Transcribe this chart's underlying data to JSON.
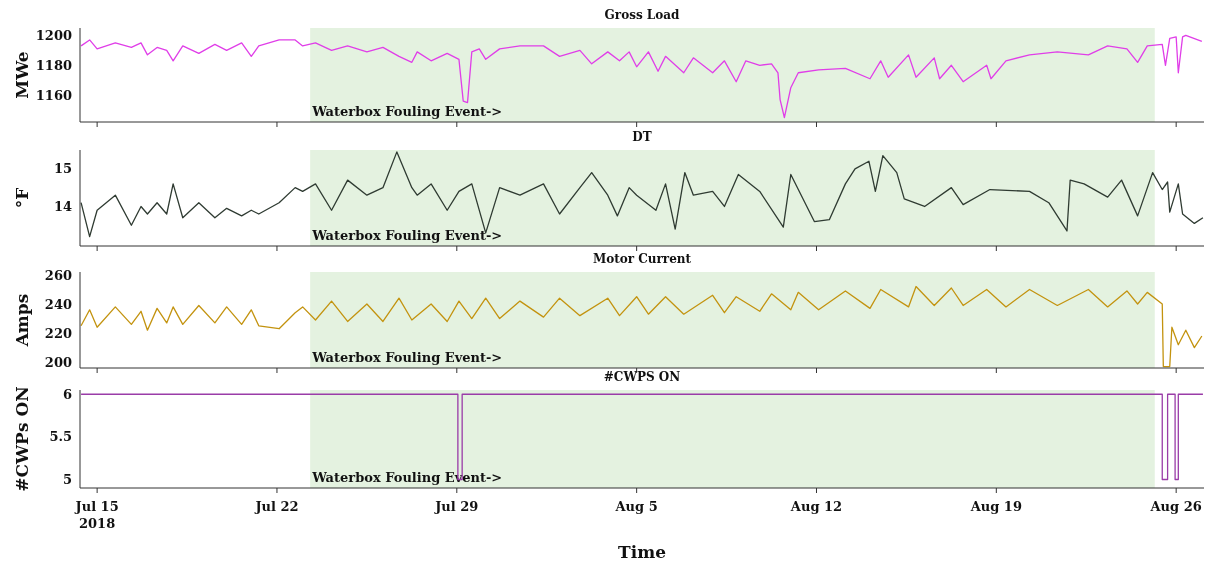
{
  "chart_data": [
    {
      "type": "line",
      "title": "Gross Load",
      "ylabel": "MWe",
      "tick_labels": "y",
      "xlim": [
        "2018-07-14T08:00",
        "2018-08-27T02:00"
      ],
      "xticks": [
        {
          "value": "2018-07-15",
          "label": null
        },
        {
          "value": "2018-07-22",
          "label": null
        },
        {
          "value": "2018-07-29",
          "label": null
        },
        {
          "value": "2018-08-05",
          "label": null
        },
        {
          "value": "2018-08-12",
          "label": null
        },
        {
          "value": "2018-08-19",
          "label": null
        },
        {
          "value": "2018-08-26",
          "label": null
        }
      ],
      "ylim": [
        1142,
        1205
      ],
      "yticks": [
        1160,
        1180,
        1200
      ],
      "bands": [
        {
          "axis": "x",
          "from": "2018-07-23T07:00",
          "to": "2018-08-25T04:00",
          "label": "Waterbox Fouling Event->",
          "color": "#e4f2e0"
        }
      ],
      "x": [
        "2018-07-14T09:00",
        "2018-07-14T17:00",
        "2018-07-15T00:00",
        "2018-07-15T17:00",
        "2018-07-16T08:00",
        "2018-07-16T17:00",
        "2018-07-16T23:00",
        "2018-07-17T08:00",
        "2018-07-17T17:00",
        "2018-07-17T23:00",
        "2018-07-18T08:00",
        "2018-07-18T23:00",
        "2018-07-19T14:00",
        "2018-07-20T01:00",
        "2018-07-20T15:00",
        "2018-07-21T00:00",
        "2018-07-21T07:00",
        "2018-07-22T02:00",
        "2018-07-22T17:00",
        "2018-07-23T00:00",
        "2018-07-23T12:00",
        "2018-07-24T03:00",
        "2018-07-24T18:00",
        "2018-07-25T12:00",
        "2018-07-26T03:00",
        "2018-07-26T18:00",
        "2018-07-27T06:00",
        "2018-07-27T11:00",
        "2018-07-28T00:00",
        "2018-07-28T15:00",
        "2018-07-29T02:00",
        "2018-07-29T06:00",
        "2018-07-29T10:00",
        "2018-07-29T14:00",
        "2018-07-29T21:00",
        "2018-07-30T03:00",
        "2018-07-30T16:00",
        "2018-07-31T11:00",
        "2018-08-01T09:00",
        "2018-08-02T00:00",
        "2018-08-02T19:00",
        "2018-08-03T06:00",
        "2018-08-03T21:00",
        "2018-08-04T08:00",
        "2018-08-04T17:00",
        "2018-08-05T00:00",
        "2018-08-05T11:00",
        "2018-08-05T20:00",
        "2018-08-06T03:00",
        "2018-08-06T20:00",
        "2018-08-07T05:00",
        "2018-08-07T23:00",
        "2018-08-08T10:00",
        "2018-08-08T21:00",
        "2018-08-09T06:00",
        "2018-08-09T19:00",
        "2018-08-10T06:00",
        "2018-08-10T12:00",
        "2018-08-10T14:00",
        "2018-08-10T18:00",
        "2018-08-11T00:00",
        "2018-08-11T07:00",
        "2018-08-12T02:00",
        "2018-08-13T03:00",
        "2018-08-14T02:00",
        "2018-08-14T12:00",
        "2018-08-14T19:00",
        "2018-08-15T14:00",
        "2018-08-15T21:00",
        "2018-08-16T14:00",
        "2018-08-16T19:00",
        "2018-08-17T06:00",
        "2018-08-17T17:00",
        "2018-08-18T15:00",
        "2018-08-18T19:00",
        "2018-08-19T09:00",
        "2018-08-20T07:00",
        "2018-08-21T09:00",
        "2018-08-22T14:00",
        "2018-08-23T08:00",
        "2018-08-24T02:00",
        "2018-08-24T12:00",
        "2018-08-24T21:00",
        "2018-08-25T11:00",
        "2018-08-25T14:00",
        "2018-08-25T18:00",
        "2018-08-26T00:00",
        "2018-08-26T02:00",
        "2018-08-26T06:00",
        "2018-08-26T09:00",
        "2018-08-27T00:00"
      ],
      "series": [
        {
          "color": "#e03ee8",
          "values": [
            1193,
            1197,
            1191,
            1195,
            1192,
            1195,
            1187,
            1192,
            1190,
            1183,
            1193,
            1188,
            1194,
            1190,
            1195,
            1186,
            1193,
            1197,
            1197,
            1193,
            1195,
            1190,
            1193,
            1189,
            1192,
            1186,
            1182,
            1189,
            1183,
            1188,
            1184,
            1156,
            1155,
            1189,
            1191,
            1184,
            1191,
            1193,
            1193,
            1186,
            1190,
            1181,
            1189,
            1183,
            1189,
            1179,
            1189,
            1176,
            1186,
            1175,
            1185,
            1175,
            1183,
            1169,
            1183,
            1180,
            1181,
            1175,
            1157,
            1145,
            1165,
            1175,
            1177,
            1178,
            1171,
            1183,
            1172,
            1187,
            1172,
            1185,
            1171,
            1180,
            1169,
            1180,
            1171,
            1183,
            1187,
            1189,
            1187,
            1193,
            1191,
            1182,
            1193,
            1194,
            1180,
            1198,
            1199,
            1175,
            1199,
            1200,
            1196
          ]
        }
      ]
    },
    {
      "type": "line",
      "title": "DT",
      "ylabel": "°F",
      "tick_labels": "y",
      "xlim": [
        "2018-07-14T08:00",
        "2018-08-27T02:00"
      ],
      "xticks": [
        {
          "value": "2018-07-15",
          "label": null
        },
        {
          "value": "2018-07-22",
          "label": null
        },
        {
          "value": "2018-07-29",
          "label": null
        },
        {
          "value": "2018-08-05",
          "label": null
        },
        {
          "value": "2018-08-12",
          "label": null
        },
        {
          "value": "2018-08-19",
          "label": null
        },
        {
          "value": "2018-08-26",
          "label": null
        }
      ],
      "ylim": [
        12.95,
        15.5
      ],
      "yticks": [
        14,
        15
      ],
      "bands": [
        {
          "axis": "x",
          "from": "2018-07-23T07:00",
          "to": "2018-08-25T04:00",
          "label": "Waterbox Fouling Event->",
          "color": "#e4f2e0"
        }
      ],
      "x": [
        "2018-07-14T09:00",
        "2018-07-14T17:00",
        "2018-07-15T00:00",
        "2018-07-15T17:00",
        "2018-07-16T08:00",
        "2018-07-16T17:00",
        "2018-07-16T23:00",
        "2018-07-17T08:00",
        "2018-07-17T17:00",
        "2018-07-17T23:00",
        "2018-07-18T08:00",
        "2018-07-18T23:00",
        "2018-07-19T14:00",
        "2018-07-20T01:00",
        "2018-07-20T15:00",
        "2018-07-21T00:00",
        "2018-07-21T07:00",
        "2018-07-22T02:00",
        "2018-07-22T17:00",
        "2018-07-23T00:00",
        "2018-07-23T12:00",
        "2018-07-24T03:00",
        "2018-07-24T18:00",
        "2018-07-25T12:00",
        "2018-07-26T03:00",
        "2018-07-26T16:00",
        "2018-07-27T06:00",
        "2018-07-27T11:00",
        "2018-07-28T00:00",
        "2018-07-28T15:00",
        "2018-07-29T02:00",
        "2018-07-29T14:00",
        "2018-07-30T03:00",
        "2018-07-30T16:00",
        "2018-07-31T11:00",
        "2018-08-01T09:00",
        "2018-08-02T00:00",
        "2018-08-02T19:00",
        "2018-08-03T06:00",
        "2018-08-03T21:00",
        "2018-08-04T06:00",
        "2018-08-04T17:00",
        "2018-08-05T00:00",
        "2018-08-05T18:00",
        "2018-08-06T03:00",
        "2018-08-06T12:00",
        "2018-08-06T21:00",
        "2018-08-07T05:00",
        "2018-08-07T23:00",
        "2018-08-08T10:00",
        "2018-08-08T23:00",
        "2018-08-09T19:00",
        "2018-08-10T17:00",
        "2018-08-11T00:00",
        "2018-08-11T22:00",
        "2018-08-12T12:00",
        "2018-08-13T03:00",
        "2018-08-13T12:00",
        "2018-08-14T01:00",
        "2018-08-14T07:00",
        "2018-08-14T14:00",
        "2018-08-15T03:00",
        "2018-08-15T10:00",
        "2018-08-16T05:00",
        "2018-08-17T06:00",
        "2018-08-17T17:00",
        "2018-08-18T18:00",
        "2018-08-20T07:00",
        "2018-08-21T01:00",
        "2018-08-21T18:00",
        "2018-08-21T21:00",
        "2018-08-22T10:00",
        "2018-08-23T08:00",
        "2018-08-23T21:00",
        "2018-08-24T12:00",
        "2018-08-25T02:00",
        "2018-08-25T11:00",
        "2018-08-25T16:00",
        "2018-08-25T18:00",
        "2018-08-26T02:00",
        "2018-08-26T06:00",
        "2018-08-26T17:00",
        "2018-08-27T01:00"
      ],
      "series": [
        {
          "color": "#2f3b32",
          "values": [
            14.1,
            13.2,
            13.9,
            14.3,
            13.5,
            14.0,
            13.8,
            14.1,
            13.8,
            14.6,
            13.7,
            14.1,
            13.7,
            13.95,
            13.75,
            13.9,
            13.8,
            14.1,
            14.5,
            14.4,
            14.6,
            13.9,
            14.7,
            14.3,
            14.5,
            15.45,
            14.5,
            14.3,
            14.6,
            13.9,
            14.4,
            14.6,
            13.3,
            14.5,
            14.3,
            14.6,
            13.8,
            14.5,
            14.9,
            14.3,
            13.75,
            14.5,
            14.3,
            13.9,
            14.6,
            13.4,
            14.9,
            14.3,
            14.4,
            14.0,
            14.85,
            14.4,
            13.45,
            14.85,
            13.6,
            13.65,
            14.6,
            15.0,
            15.2,
            14.4,
            15.35,
            14.9,
            14.2,
            14.0,
            14.5,
            14.05,
            14.45,
            14.4,
            14.1,
            13.35,
            14.7,
            14.6,
            14.25,
            14.7,
            13.75,
            14.9,
            14.45,
            14.65,
            13.85,
            14.6,
            13.8,
            13.55,
            13.7
          ]
        }
      ]
    },
    {
      "type": "line",
      "title": "Motor Current",
      "ylabel": "Amps",
      "tick_labels": "y",
      "xlim": [
        "2018-07-14T08:00",
        "2018-08-27T02:00"
      ],
      "xticks": [
        {
          "value": "2018-07-15",
          "label": null
        },
        {
          "value": "2018-07-22",
          "label": null
        },
        {
          "value": "2018-07-29",
          "label": null
        },
        {
          "value": "2018-08-05",
          "label": null
        },
        {
          "value": "2018-08-12",
          "label": null
        },
        {
          "value": "2018-08-19",
          "label": null
        },
        {
          "value": "2018-08-26",
          "label": null
        }
      ],
      "ylim": [
        196,
        262
      ],
      "yticks": [
        200,
        220,
        240,
        260
      ],
      "bands": [
        {
          "axis": "x",
          "from": "2018-07-23T07:00",
          "to": "2018-08-25T04:00",
          "label": "Waterbox Fouling Event->",
          "color": "#e4f2e0"
        }
      ],
      "x": [
        "2018-07-14T09:00",
        "2018-07-14T17:00",
        "2018-07-15T00:00",
        "2018-07-15T17:00",
        "2018-07-16T08:00",
        "2018-07-16T17:00",
        "2018-07-16T23:00",
        "2018-07-17T08:00",
        "2018-07-17T17:00",
        "2018-07-17T23:00",
        "2018-07-18T08:00",
        "2018-07-18T23:00",
        "2018-07-19T14:00",
        "2018-07-20T01:00",
        "2018-07-20T15:00",
        "2018-07-21T00:00",
        "2018-07-21T07:00",
        "2018-07-22T02:00",
        "2018-07-22T17:00",
        "2018-07-23T00:00",
        "2018-07-23T12:00",
        "2018-07-24T03:00",
        "2018-07-24T18:00",
        "2018-07-25T12:00",
        "2018-07-26T03:00",
        "2018-07-26T18:00",
        "2018-07-27T06:00",
        "2018-07-28T00:00",
        "2018-07-28T15:00",
        "2018-07-29T02:00",
        "2018-07-29T14:00",
        "2018-07-30T03:00",
        "2018-07-30T16:00",
        "2018-07-31T11:00",
        "2018-08-01T09:00",
        "2018-08-02T00:00",
        "2018-08-02T19:00",
        "2018-08-03T21:00",
        "2018-08-04T08:00",
        "2018-08-05T00:00",
        "2018-08-05T11:00",
        "2018-08-06T03:00",
        "2018-08-06T20:00",
        "2018-08-07T23:00",
        "2018-08-08T10:00",
        "2018-08-08T21:00",
        "2018-08-09T19:00",
        "2018-08-10T06:00",
        "2018-08-11T00:00",
        "2018-08-11T07:00",
        "2018-08-12T02:00",
        "2018-08-13T03:00",
        "2018-08-14T02:00",
        "2018-08-14T12:00",
        "2018-08-15T14:00",
        "2018-08-15T21:00",
        "2018-08-16T14:00",
        "2018-08-17T06:00",
        "2018-08-17T17:00",
        "2018-08-18T15:00",
        "2018-08-19T09:00",
        "2018-08-20T07:00",
        "2018-08-21T09:00",
        "2018-08-22T14:00",
        "2018-08-23T08:00",
        "2018-08-24T02:00",
        "2018-08-24T12:00",
        "2018-08-24T21:00",
        "2018-08-25T11:00",
        "2018-08-25T12:00",
        "2018-08-25T18:00",
        "2018-08-25T20:00",
        "2018-08-26T02:00",
        "2018-08-26T09:00",
        "2018-08-26T17:00",
        "2018-08-27T00:00"
      ],
      "series": [
        {
          "color": "#c3930f",
          "values": [
            225,
            236,
            224,
            238,
            226,
            235,
            222,
            237,
            227,
            238,
            226,
            239,
            227,
            238,
            226,
            236,
            225,
            223,
            234,
            238,
            229,
            242,
            228,
            240,
            228,
            244,
            229,
            240,
            228,
            242,
            230,
            244,
            230,
            242,
            231,
            244,
            232,
            244,
            232,
            245,
            233,
            245,
            233,
            246,
            234,
            245,
            235,
            247,
            236,
            248,
            236,
            249,
            237,
            250,
            238,
            252,
            239,
            251,
            239,
            250,
            238,
            250,
            239,
            250,
            238,
            249,
            240,
            248,
            240,
            197,
            197,
            224,
            212,
            222,
            210,
            218
          ]
        }
      ]
    },
    {
      "type": "step",
      "title": "#CWPS ON",
      "ylabel": "#CWPs ON",
      "xlabel": "Time",
      "xlim": [
        "2018-07-14T08:00",
        "2018-08-27T02:00"
      ],
      "xticks": [
        {
          "value": "2018-07-15",
          "label": "Jul 15\n2018"
        },
        {
          "value": "2018-07-22",
          "label": "Jul 22"
        },
        {
          "value": "2018-07-29",
          "label": "Jul 29"
        },
        {
          "value": "2018-08-05",
          "label": "Aug 5"
        },
        {
          "value": "2018-08-12",
          "label": "Aug 12"
        },
        {
          "value": "2018-08-19",
          "label": "Aug 19"
        },
        {
          "value": "2018-08-26",
          "label": "Aug 26"
        }
      ],
      "ylim": [
        4.9,
        6.05
      ],
      "yticks": [
        5,
        5.5,
        6
      ],
      "bands": [
        {
          "axis": "x",
          "from": "2018-07-23T07:00",
          "to": "2018-08-25T04:00",
          "label": "Waterbox Fouling Event->",
          "color": "#e4f2e0"
        }
      ],
      "x": [
        "2018-07-14T09:00",
        "2018-07-29T01:00",
        "2018-07-29T05:00",
        "2018-08-25T11:00",
        "2018-08-25T16:00",
        "2018-08-25T23:00",
        "2018-08-26T02:00",
        "2018-08-27T01:00"
      ],
      "series": [
        {
          "color": "#9a3ca8",
          "values": [
            6,
            5,
            6,
            5,
            6,
            5,
            6,
            6
          ]
        }
      ]
    }
  ]
}
